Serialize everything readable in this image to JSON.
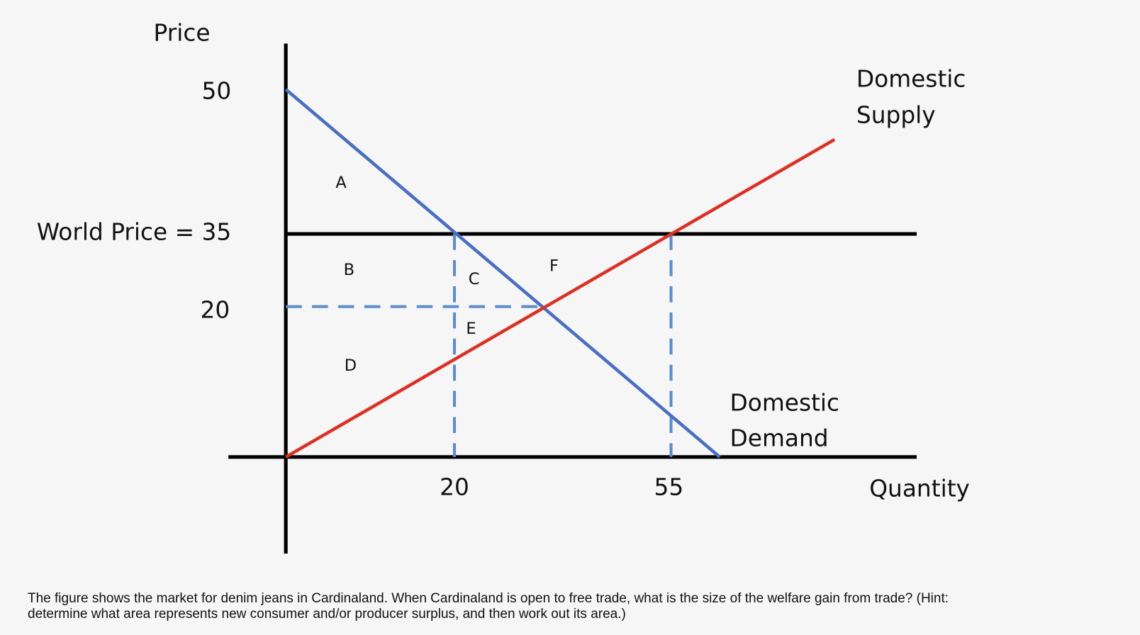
{
  "axes": {
    "y_label": "Price",
    "x_label": "Quantity",
    "y_ticks": [
      "50",
      "World Price = 35",
      "20"
    ],
    "x_ticks": [
      "20",
      "55"
    ]
  },
  "curves": {
    "supply": [
      "Domestic",
      "Supply"
    ],
    "demand": [
      "Domestic",
      "Demand"
    ]
  },
  "regions": [
    "A",
    "B",
    "C",
    "F",
    "E",
    "D"
  ],
  "caption": [
    "The figure shows the market for denim jeans in Cardinaland. When Cardinaland is open to free trade, what is the size of the welfare gain from trade? (Hint:",
    "determine what area represents new consumer and/or producer surplus, and then work out its area.)"
  ]
}
